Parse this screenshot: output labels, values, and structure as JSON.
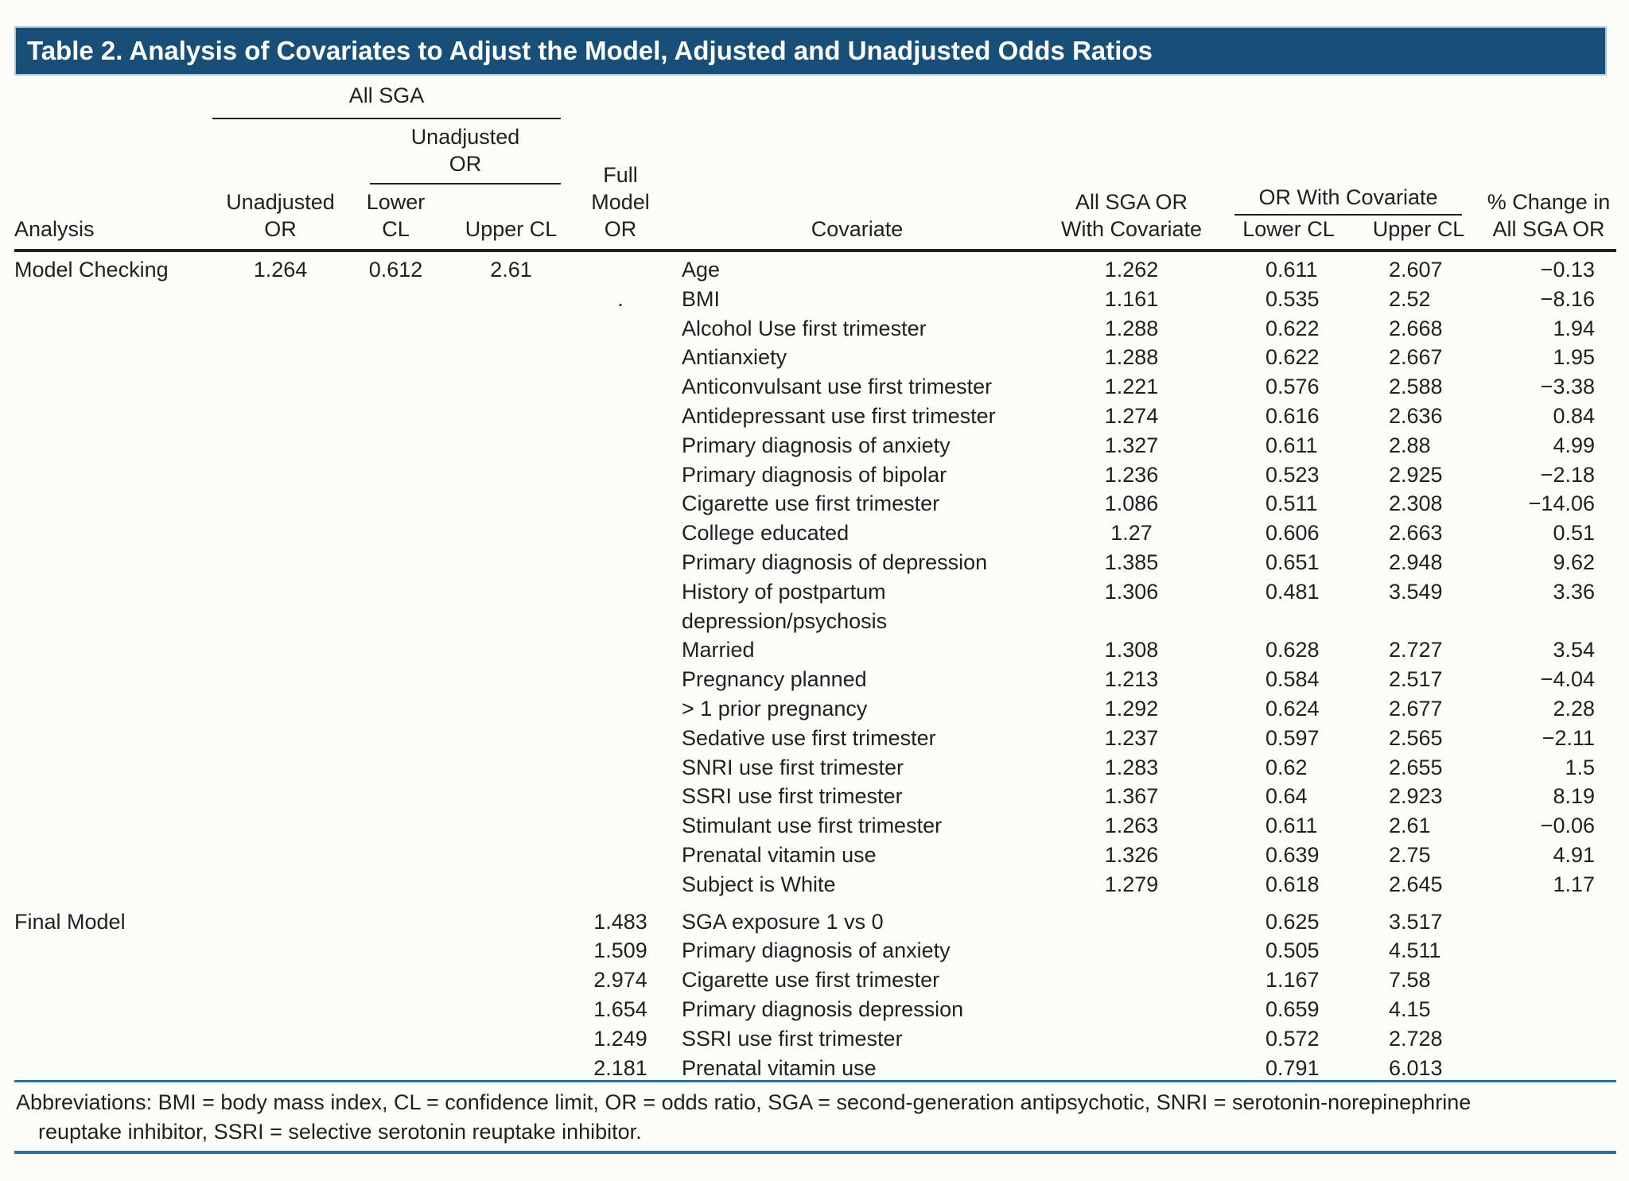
{
  "title": "Table 2. Analysis of Covariates to Adjust the Model, Adjusted and Unadjusted Odds Ratios",
  "header": {
    "group_all_sga": "All SGA",
    "sub_unadjusted_or": "Unadjusted\nOR",
    "col_analysis": "Analysis",
    "col_unadjusted_or": "Unadjusted\nOR",
    "col_lower_cl": "Lower\nCL",
    "col_upper_cl": "Upper CL",
    "col_full_model_or": "Full\nModel\nOR",
    "col_covariate": "Covariate",
    "col_all_sga_or_with_covariate": "All SGA OR\nWith Covariate",
    "group_or_with_covariate": "OR With Covariate",
    "col_lower_cl2": "Lower CL",
    "col_upper_cl2": "Upper CL",
    "col_pct_change": "% Change in\nAll SGA OR"
  },
  "sections": [
    {
      "analysis": "Model Checking",
      "unadjusted_or": "1.264",
      "lower_cl": "0.612",
      "upper_cl": "2.61",
      "rows": [
        {
          "full_model_or": "",
          "covariate": "Age",
          "all_sga_or_with_cov": "1.262",
          "lower_cl": "0.611",
          "upper_cl": "2.607",
          "pct_change": "−0.13"
        },
        {
          "full_model_or": ".",
          "covariate": "BMI",
          "all_sga_or_with_cov": "1.161",
          "lower_cl": "0.535",
          "upper_cl": "2.52",
          "pct_change": "−8.16"
        },
        {
          "full_model_or": "",
          "covariate": "Alcohol Use first trimester",
          "all_sga_or_with_cov": "1.288",
          "lower_cl": "0.622",
          "upper_cl": "2.668",
          "pct_change": "1.94"
        },
        {
          "full_model_or": "",
          "covariate": "Antianxiety",
          "all_sga_or_with_cov": "1.288",
          "lower_cl": "0.622",
          "upper_cl": "2.667",
          "pct_change": "1.95"
        },
        {
          "full_model_or": "",
          "covariate": "Anticonvulsant use first trimester",
          "all_sga_or_with_cov": "1.221",
          "lower_cl": "0.576",
          "upper_cl": "2.588",
          "pct_change": "−3.38"
        },
        {
          "full_model_or": "",
          "covariate": "Antidepressant use first trimester",
          "all_sga_or_with_cov": "1.274",
          "lower_cl": "0.616",
          "upper_cl": "2.636",
          "pct_change": "0.84"
        },
        {
          "full_model_or": "",
          "covariate": "Primary diagnosis of anxiety",
          "all_sga_or_with_cov": "1.327",
          "lower_cl": "0.611",
          "upper_cl": "2.88",
          "pct_change": "4.99"
        },
        {
          "full_model_or": "",
          "covariate": "Primary diagnosis of bipolar",
          "all_sga_or_with_cov": "1.236",
          "lower_cl": "0.523",
          "upper_cl": "2.925",
          "pct_change": "−2.18"
        },
        {
          "full_model_or": "",
          "covariate": "Cigarette use first trimester",
          "all_sga_or_with_cov": "1.086",
          "lower_cl": "0.511",
          "upper_cl": "2.308",
          "pct_change": "−14.06"
        },
        {
          "full_model_or": "",
          "covariate": "College educated",
          "all_sga_or_with_cov": "1.27",
          "lower_cl": "0.606",
          "upper_cl": "2.663",
          "pct_change": "0.51"
        },
        {
          "full_model_or": "",
          "covariate": "Primary diagnosis of depression",
          "all_sga_or_with_cov": "1.385",
          "lower_cl": "0.651",
          "upper_cl": "2.948",
          "pct_change": "9.62"
        },
        {
          "full_model_or": "",
          "covariate": "History of postpartum\ndepression/psychosis",
          "all_sga_or_with_cov": "1.306",
          "lower_cl": "0.481",
          "upper_cl": "3.549",
          "pct_change": "3.36"
        },
        {
          "full_model_or": "",
          "covariate": "Married",
          "all_sga_or_with_cov": "1.308",
          "lower_cl": "0.628",
          "upper_cl": "2.727",
          "pct_change": "3.54"
        },
        {
          "full_model_or": "",
          "covariate": "Pregnancy planned",
          "all_sga_or_with_cov": "1.213",
          "lower_cl": "0.584",
          "upper_cl": "2.517",
          "pct_change": "−4.04"
        },
        {
          "full_model_or": "",
          "covariate": "> 1 prior pregnancy",
          "all_sga_or_with_cov": "1.292",
          "lower_cl": "0.624",
          "upper_cl": "2.677",
          "pct_change": "2.28"
        },
        {
          "full_model_or": "",
          "covariate": "Sedative use first trimester",
          "all_sga_or_with_cov": "1.237",
          "lower_cl": "0.597",
          "upper_cl": "2.565",
          "pct_change": "−2.11"
        },
        {
          "full_model_or": "",
          "covariate": "SNRI use first trimester",
          "all_sga_or_with_cov": "1.283",
          "lower_cl": "0.62",
          "upper_cl": "2.655",
          "pct_change": "1.5"
        },
        {
          "full_model_or": "",
          "covariate": "SSRI use first trimester",
          "all_sga_or_with_cov": "1.367",
          "lower_cl": "0.64",
          "upper_cl": "2.923",
          "pct_change": "8.19"
        },
        {
          "full_model_or": "",
          "covariate": "Stimulant use first trimester",
          "all_sga_or_with_cov": "1.263",
          "lower_cl": "0.611",
          "upper_cl": "2.61",
          "pct_change": "−0.06"
        },
        {
          "full_model_or": "",
          "covariate": "Prenatal vitamin use",
          "all_sga_or_with_cov": "1.326",
          "lower_cl": "0.639",
          "upper_cl": "2.75",
          "pct_change": "4.91"
        },
        {
          "full_model_or": "",
          "covariate": "Subject is White",
          "all_sga_or_with_cov": "1.279",
          "lower_cl": "0.618",
          "upper_cl": "2.645",
          "pct_change": "1.17"
        }
      ]
    },
    {
      "analysis": "Final Model",
      "unadjusted_or": "",
      "lower_cl": "",
      "upper_cl": "",
      "rows": [
        {
          "full_model_or": "1.483",
          "covariate": "SGA exposure 1 vs 0",
          "all_sga_or_with_cov": "",
          "lower_cl": "0.625",
          "upper_cl": "3.517",
          "pct_change": ""
        },
        {
          "full_model_or": "1.509",
          "covariate": "Primary diagnosis of anxiety",
          "all_sga_or_with_cov": "",
          "lower_cl": "0.505",
          "upper_cl": "4.511",
          "pct_change": ""
        },
        {
          "full_model_or": "2.974",
          "covariate": "Cigarette use first trimester",
          "all_sga_or_with_cov": "",
          "lower_cl": "1.167",
          "upper_cl": "7.58",
          "pct_change": ""
        },
        {
          "full_model_or": "1.654",
          "covariate": "Primary diagnosis depression",
          "all_sga_or_with_cov": "",
          "lower_cl": "0.659",
          "upper_cl": "4.15",
          "pct_change": ""
        },
        {
          "full_model_or": "1.249",
          "covariate": "SSRI use first trimester",
          "all_sga_or_with_cov": "",
          "lower_cl": "0.572",
          "upper_cl": "2.728",
          "pct_change": ""
        },
        {
          "full_model_or": "2.181",
          "covariate": "Prenatal vitamin use",
          "all_sga_or_with_cov": "",
          "lower_cl": "0.791",
          "upper_cl": "6.013",
          "pct_change": ""
        }
      ]
    }
  ],
  "footnote": {
    "line1": "Abbreviations: BMI = body mass index, CL = confidence limit, OR = odds ratio, SGA = second-generation antipsychotic, SNRI = serotonin-norepinephrine",
    "line2": "reuptake inhibitor, SSRI = selective serotonin reuptake inhibitor."
  },
  "colors": {
    "title_bar": "#174f78",
    "rule_blue": "#2b6fa1",
    "text": "#231f20"
  }
}
